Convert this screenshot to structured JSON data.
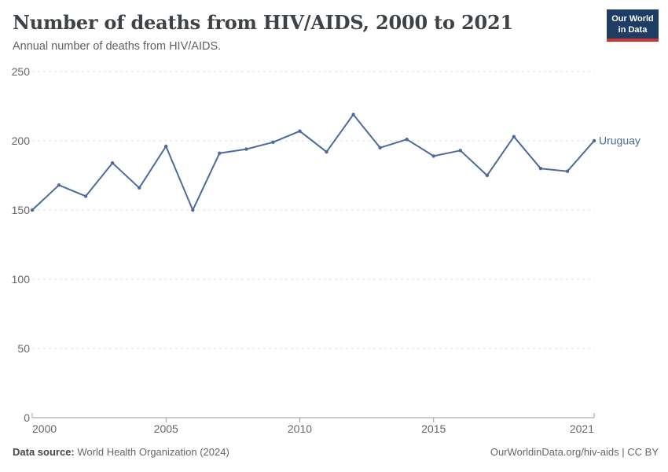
{
  "header": {
    "title": "Number of deaths from HIV/AIDS, 2000 to 2021",
    "subtitle": "Annual number of deaths from HIV/AIDS.",
    "logo": {
      "line1": "Our World",
      "line2": "in Data",
      "bg_color": "#1d3d63",
      "accent_color": "#d0342c"
    }
  },
  "chart_data": {
    "type": "line",
    "title": "Number of deaths from HIV/AIDS, 2000 to 2021",
    "categories": [
      2000,
      2001,
      2002,
      2003,
      2004,
      2005,
      2006,
      2007,
      2008,
      2009,
      2010,
      2011,
      2012,
      2013,
      2014,
      2015,
      2016,
      2017,
      2018,
      2019,
      2020,
      2021
    ],
    "series": [
      {
        "name": "Uruguay",
        "color": "#4C6A9C",
        "values": [
          150,
          168,
          160,
          184,
          166,
          196,
          150,
          191,
          194,
          199,
          207,
          192,
          219,
          195,
          201,
          189,
          193,
          175,
          203,
          180,
          178,
          200
        ]
      }
    ],
    "x_ticks": [
      2000,
      2005,
      2010,
      2015,
      2021
    ],
    "y_ticks": [
      0,
      50,
      100,
      150,
      200,
      250
    ],
    "xlim": [
      2000,
      2021
    ],
    "ylim": [
      0,
      250
    ],
    "xlabel": "",
    "ylabel": "",
    "grid": "horizontal-dashed",
    "legend": "entity-label-right-of-line"
  },
  "footer": {
    "data_source_label": "Data source:",
    "data_source_value": "World Health Organization (2024)",
    "attribution": "OurWorldinData.org/hiv-aids | CC BY"
  },
  "colors": {
    "series": "#4C6A9C",
    "grid": "#dcdcdc",
    "axis": "#9e9e9e",
    "tick_text": "#666666"
  }
}
